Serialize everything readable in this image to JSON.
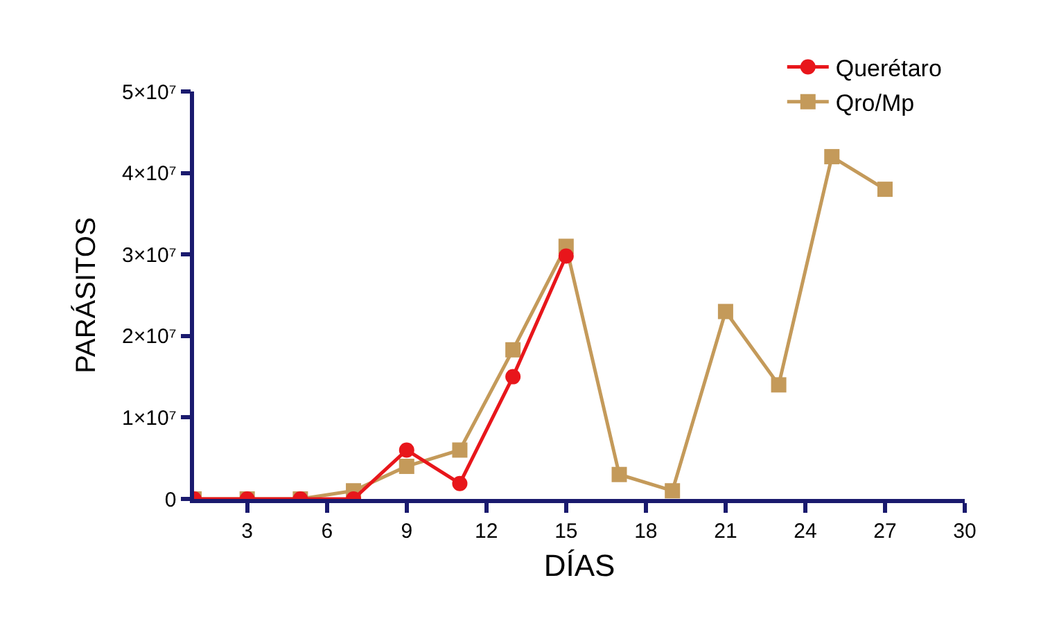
{
  "chart_data": {
    "type": "line",
    "xlabel": "DÍAS",
    "ylabel": "PARÁSITOS",
    "xlim": [
      1,
      30
    ],
    "xticks": [
      3,
      6,
      9,
      12,
      15,
      18,
      21,
      24,
      27,
      30
    ],
    "ylim": [
      0,
      50000000
    ],
    "yticks": [
      0,
      {
        "value": 10000000,
        "label": "1×10⁷"
      },
      {
        "value": 20000000,
        "label": "2×10⁷"
      },
      {
        "value": 30000000,
        "label": "3×10⁷"
      },
      {
        "value": 40000000,
        "label": "4×10⁷"
      },
      {
        "value": 50000000,
        "label": "5×10⁷"
      }
    ],
    "grid": false,
    "legend": "top right",
    "line_style": "solid",
    "series": [
      {
        "name": "Querétaro",
        "color": "#e8161b",
        "marker": "circle",
        "x": [
          1,
          3,
          5,
          7,
          9,
          11,
          13,
          15
        ],
        "values": [
          0,
          0,
          0,
          0,
          6000000,
          1900000,
          15000000,
          29800000
        ]
      },
      {
        "name": "Qro/Mp",
        "color": "#c49a5a",
        "marker": "square",
        "x": [
          1,
          3,
          5,
          7,
          9,
          11,
          13,
          15,
          17,
          19,
          21,
          23,
          25,
          27
        ],
        "values": [
          0,
          0,
          0,
          1000000,
          4000000,
          6000000,
          18300000,
          31000000,
          3000000,
          1000000,
          23000000,
          14000000,
          42000000,
          38000000
        ]
      }
    ]
  }
}
